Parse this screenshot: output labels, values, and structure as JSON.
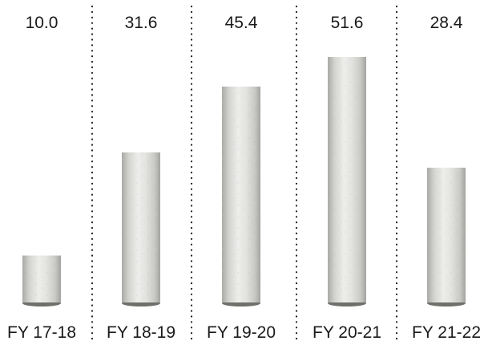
{
  "chart_data": {
    "type": "bar",
    "categories": [
      "FY 17-18",
      "FY 18-19",
      "FY 19-20",
      "FY 20-21",
      "FY 21-22"
    ],
    "values": [
      10.0,
      31.6,
      45.4,
      51.6,
      28.4
    ],
    "value_labels": [
      "10.0",
      "31.6",
      "45.4",
      "51.6",
      "28.4"
    ],
    "grid": "vertical dotted separators between categories",
    "bar_style": "concrete cylinder",
    "colors": {
      "bar_light": "#ededeb",
      "bar_mid": "#d3d3d0",
      "bar_dark": "#a9a9a6",
      "base_shadow": "#6f6f6c",
      "separator": "#222222",
      "text": "#1a1a1a"
    }
  }
}
